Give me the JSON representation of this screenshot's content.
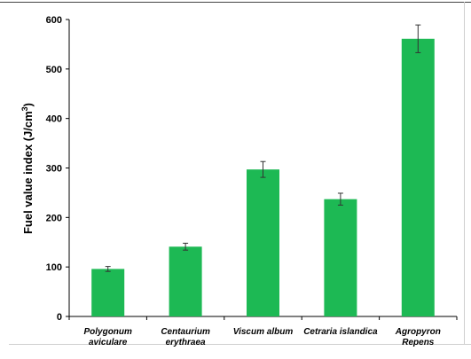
{
  "chart_data": {
    "type": "bar",
    "categories": [
      [
        "Polygonum",
        "aviculare"
      ],
      [
        "Centaurium",
        "erythraea"
      ],
      [
        "Viscum album"
      ],
      [
        "Cetraria islandica"
      ],
      [
        "Agropyron",
        "Repens"
      ]
    ],
    "values": [
      96,
      141,
      297,
      237,
      561
    ],
    "errors": [
      5,
      7,
      16,
      12,
      28
    ],
    "ylabel": "Fuel value index (J/cm",
    "ylabel_sup": "3",
    "ylabel_end": ")",
    "ylim": [
      0,
      600
    ],
    "yticks": [
      0,
      100,
      200,
      300,
      400,
      500,
      600
    ],
    "bar_color": "#1db954",
    "grid": false
  }
}
